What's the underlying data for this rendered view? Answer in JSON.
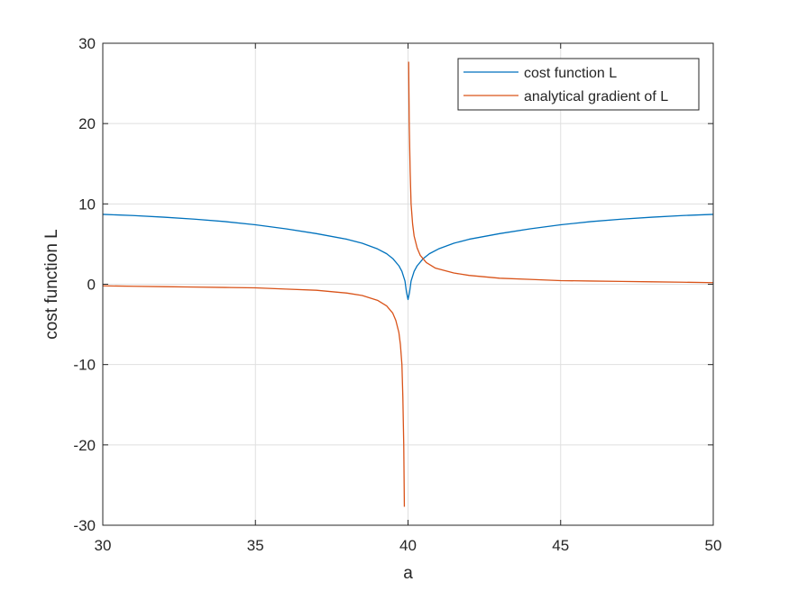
{
  "chart_data": {
    "type": "line",
    "title": "",
    "xlabel": "a",
    "ylabel": "cost function L",
    "xlim": [
      30,
      50
    ],
    "ylim": [
      -30,
      30
    ],
    "x_ticks": [
      30,
      35,
      40,
      45,
      50
    ],
    "y_ticks": [
      -30,
      -20,
      -10,
      0,
      10,
      20,
      30
    ],
    "x_tick_labels": [
      "30",
      "35",
      "40",
      "45",
      "50"
    ],
    "y_tick_labels": [
      "-30",
      "-20",
      "-10",
      "0",
      "10",
      "20",
      "30"
    ],
    "grid": true,
    "legend_position": "top-right",
    "series": [
      {
        "name": "cost function L",
        "color": "#0072BD",
        "points": [
          [
            30,
            8.7
          ],
          [
            31,
            8.55
          ],
          [
            32,
            8.35
          ],
          [
            33,
            8.1
          ],
          [
            34,
            7.8
          ],
          [
            35,
            7.4
          ],
          [
            36,
            6.9
          ],
          [
            37,
            6.3
          ],
          [
            38,
            5.6
          ],
          [
            38.5,
            5.1
          ],
          [
            39,
            4.4
          ],
          [
            39.3,
            3.8
          ],
          [
            39.5,
            3.2
          ],
          [
            39.7,
            2.3
          ],
          [
            39.8,
            1.6
          ],
          [
            39.9,
            0.4
          ],
          [
            39.95,
            -1.0
          ],
          [
            40.0,
            -1.9
          ],
          [
            40.05,
            -1.0
          ],
          [
            40.1,
            0.4
          ],
          [
            40.2,
            1.6
          ],
          [
            40.3,
            2.3
          ],
          [
            40.5,
            3.2
          ],
          [
            40.7,
            3.8
          ],
          [
            41,
            4.4
          ],
          [
            41.5,
            5.1
          ],
          [
            42,
            5.6
          ],
          [
            43,
            6.3
          ],
          [
            44,
            6.9
          ],
          [
            45,
            7.4
          ],
          [
            46,
            7.8
          ],
          [
            47,
            8.1
          ],
          [
            48,
            8.35
          ],
          [
            49,
            8.55
          ],
          [
            50,
            8.7
          ]
        ]
      },
      {
        "name": "analytical gradient of L",
        "color": "#D95319",
        "points": [
          [
            30,
            -0.2
          ],
          [
            31,
            -0.25
          ],
          [
            32,
            -0.3
          ],
          [
            33,
            -0.35
          ],
          [
            34,
            -0.4
          ],
          [
            35,
            -0.45
          ],
          [
            36,
            -0.6
          ],
          [
            37,
            -0.75
          ],
          [
            38,
            -1.1
          ],
          [
            38.5,
            -1.4
          ],
          [
            39,
            -2.0
          ],
          [
            39.3,
            -2.7
          ],
          [
            39.5,
            -3.6
          ],
          [
            39.6,
            -4.5
          ],
          [
            39.7,
            -6.0
          ],
          [
            39.75,
            -7.5
          ],
          [
            39.8,
            -10.0
          ],
          [
            39.83,
            -14.0
          ],
          [
            39.86,
            -20.0
          ],
          [
            39.88,
            -27.7
          ]
        ],
        "points_right": [
          [
            40.02,
            27.7
          ],
          [
            40.04,
            20.0
          ],
          [
            40.07,
            14.0
          ],
          [
            40.1,
            10.0
          ],
          [
            40.15,
            7.5
          ],
          [
            40.2,
            6.0
          ],
          [
            40.3,
            4.5
          ],
          [
            40.4,
            3.6
          ],
          [
            40.6,
            2.7
          ],
          [
            40.9,
            2.0
          ],
          [
            41.5,
            1.4
          ],
          [
            42,
            1.1
          ],
          [
            43,
            0.75
          ],
          [
            44,
            0.6
          ],
          [
            45,
            0.45
          ],
          [
            46,
            0.4
          ],
          [
            47,
            0.35
          ],
          [
            48,
            0.3
          ],
          [
            49,
            0.25
          ],
          [
            50,
            0.2
          ]
        ]
      }
    ]
  }
}
